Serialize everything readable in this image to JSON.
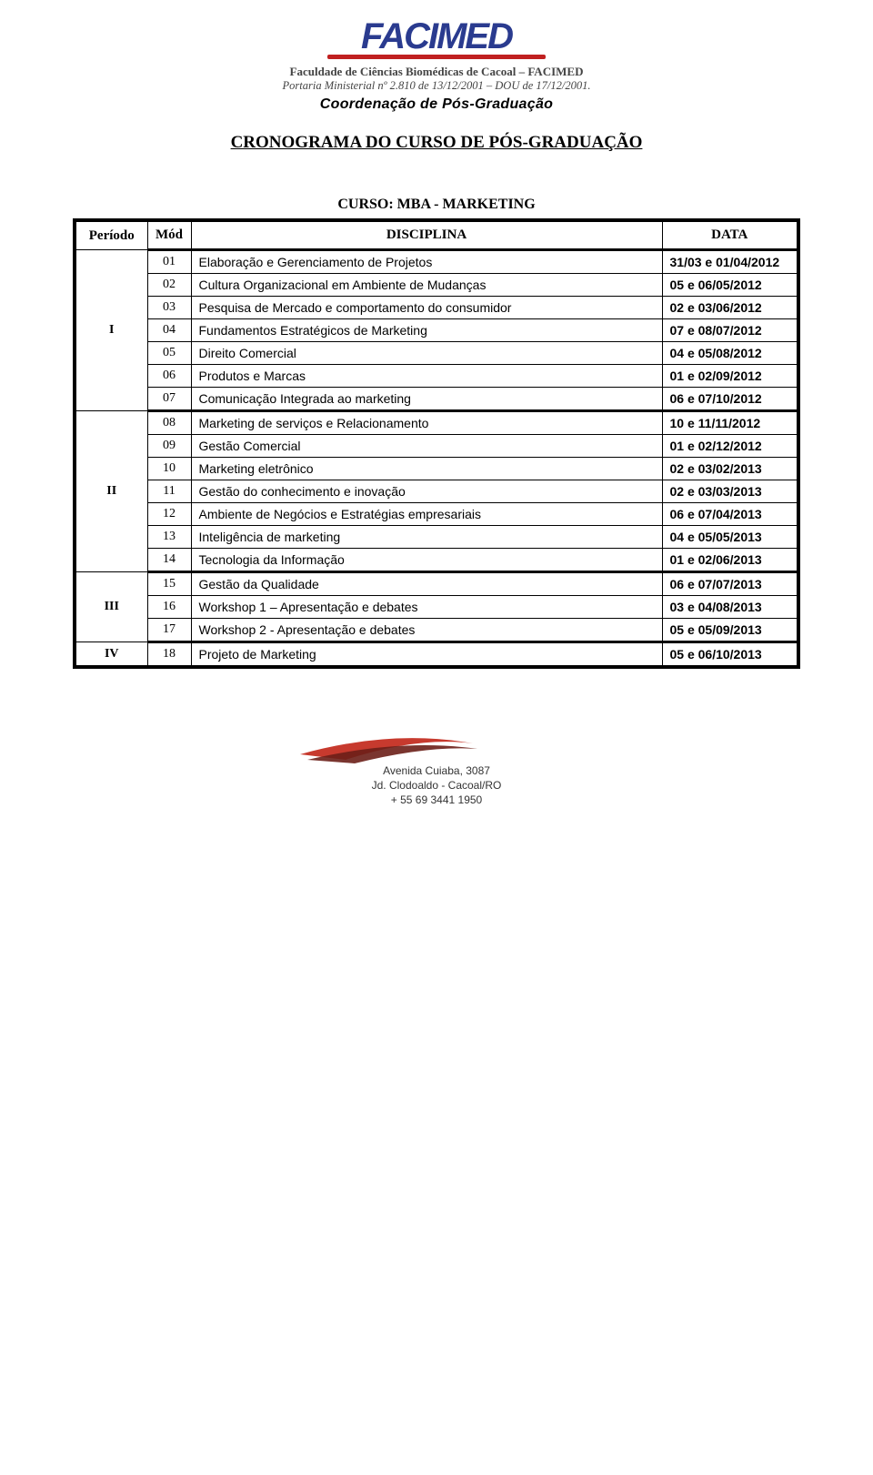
{
  "header": {
    "logo_text": "FACIMED",
    "institution": "Faculdade de Ciências Biomédicas de Cacoal – FACIMED",
    "portaria": "Portaria Ministerial nº 2.810 de 13/12/2001 – DOU de 17/12/2001.",
    "coord": "Coordenação de Pós-Graduação"
  },
  "doc_title": "CRONOGRAMA DO CURSO DE PÓS-GRADUAÇÃO",
  "course_title": "CURSO: MBA - MARKETING",
  "columns": {
    "periodo": "Período",
    "mod": "Mód",
    "disciplina": "DISCIPLINA",
    "data": "DATA"
  },
  "groups": [
    {
      "periodo": "I",
      "rows": [
        {
          "mod": "01",
          "disc": "Elaboração e Gerenciamento de Projetos",
          "data": "31/03 e 01/04/2012"
        },
        {
          "mod": "02",
          "disc": "Cultura Organizacional em Ambiente de Mudanças",
          "data": "05 e 06/05/2012"
        },
        {
          "mod": "03",
          "disc": "Pesquisa de Mercado e comportamento do consumidor",
          "data": "02 e 03/06/2012"
        },
        {
          "mod": "04",
          "disc": "Fundamentos Estratégicos de Marketing",
          "data": "07 e 08/07/2012"
        },
        {
          "mod": "05",
          "disc": "Direito Comercial",
          "data": "04 e 05/08/2012"
        },
        {
          "mod": "06",
          "disc": "Produtos e Marcas",
          "data": "01 e 02/09/2012"
        },
        {
          "mod": "07",
          "disc": "Comunicação Integrada ao marketing",
          "data": "06 e 07/10/2012"
        }
      ]
    },
    {
      "periodo": "II",
      "rows": [
        {
          "mod": "08",
          "disc": "Marketing de serviços e Relacionamento",
          "data": "10 e 11/11/2012"
        },
        {
          "mod": "09",
          "disc": "Gestão Comercial",
          "data": "01 e 02/12/2012"
        },
        {
          "mod": "10",
          "disc": "Marketing eletrônico",
          "data": "02 e 03/02/2013"
        },
        {
          "mod": "11",
          "disc": "Gestão do conhecimento e inovação",
          "data": "02 e 03/03/2013"
        },
        {
          "mod": "12",
          "disc": "Ambiente de Negócios e Estratégias empresariais",
          "data": "06 e 07/04/2013"
        },
        {
          "mod": "13",
          "disc": "Inteligência de marketing",
          "data": "04 e 05/05/2013"
        },
        {
          "mod": "14",
          "disc": "Tecnologia da Informação",
          "data": "01 e 02/06/2013"
        }
      ]
    },
    {
      "periodo": "III",
      "rows": [
        {
          "mod": "15",
          "disc": "Gestão da Qualidade",
          "data": "06 e 07/07/2013"
        },
        {
          "mod": "16",
          "disc": "Workshop 1 – Apresentação e debates",
          "data": "03 e 04/08/2013"
        },
        {
          "mod": "17",
          "disc": "Workshop 2 - Apresentação e debates",
          "data": "05 e 05/09/2013"
        }
      ]
    },
    {
      "periodo": "IV",
      "rows": [
        {
          "mod": "18",
          "disc": "Projeto de Marketing",
          "data": "05 e 06/10/2013"
        }
      ]
    }
  ],
  "footer": {
    "line1": "Avenida Cuiaba, 3087",
    "line2": "Jd. Clodoaldo - Cacoal/RO",
    "line3": "+ 55 69 3441 1950"
  },
  "colors": {
    "logo_blue": "#2a3b8f",
    "logo_red": "#c02020",
    "swoosh_red": "#c73a2e",
    "swoosh_dark": "#6b1f18"
  }
}
